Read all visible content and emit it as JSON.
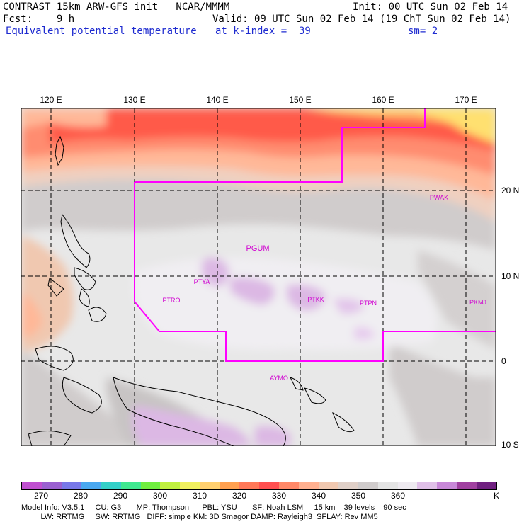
{
  "header": {
    "title": "CONTRAST 15km ARW-GFS init   NCAR/MMMM",
    "init": "Init: 00 UTC Sun 02 Feb 14",
    "fcst": "Fcst:    9 h",
    "valid": "Valid: 09 UTC Sun 02 Feb 14 (19 ChT Sun 02 Feb 14)",
    "field": "Equivalent potential temperature",
    "level": "at k-index =  39",
    "smooth": "sm= 2"
  },
  "map": {
    "lon_labels": [
      "120 E",
      "130 E",
      "140 E",
      "150 E",
      "160 E",
      "170 E"
    ],
    "lat_labels": [
      "20 N",
      "10 N",
      "0",
      "10 S"
    ],
    "stations": [
      "PGUM",
      "PTYA",
      "PTRO",
      "PTKK",
      "PTPN",
      "PKMJ",
      "PWAK",
      "AYMO"
    ],
    "colors": {
      "boundary": "#ff00ff",
      "grid": "#000000"
    }
  },
  "colorbar": {
    "ticks": [
      "270",
      "280",
      "290",
      "300",
      "310",
      "320",
      "330",
      "340",
      "350",
      "360"
    ],
    "unit": "K",
    "colors": [
      "#c050d0",
      "#9a60d0",
      "#7878e8",
      "#4aa8f0",
      "#34d0c8",
      "#40e890",
      "#70ee40",
      "#c0f040",
      "#f0f060",
      "#ffd070",
      "#ffa050",
      "#ff7858",
      "#ff5050",
      "#ff8868",
      "#ffb090",
      "#f0c8b0",
      "#e0d0c8",
      "#d0cccc",
      "#e4e4e4",
      "#eeeaf0",
      "#e0c0e8",
      "#c888d8",
      "#a040a0",
      "#702080"
    ]
  },
  "model_info": {
    "line1": "Model Info: V3.5.1     CU: G3       MP: Thompson      PBL: YSU       SF: Noah LSM     15 km    39 levels    90 sec",
    "line2": "         LW: RRTMG     SW: RRTMG   DIFF: simple KM: 3D Smagor DAMP: Rayleigh3  SFLAY: Rev MM5"
  }
}
